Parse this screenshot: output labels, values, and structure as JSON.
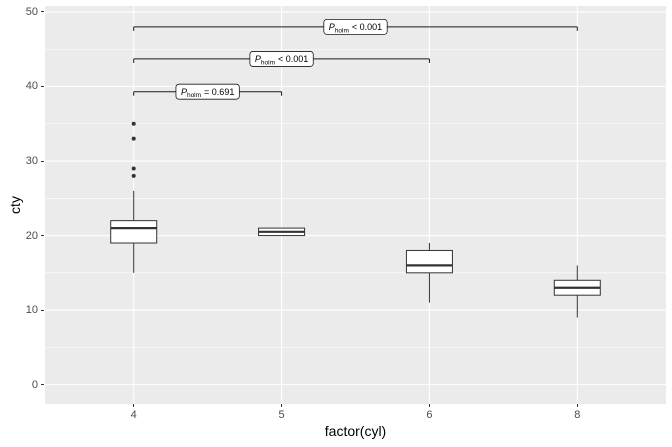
{
  "chart_data": {
    "type": "boxplot",
    "title": "",
    "xlabel": "factor(cyl)",
    "ylabel": "cty",
    "categories": [
      "4",
      "5",
      "6",
      "8"
    ],
    "y_ticks": [
      0,
      10,
      20,
      30,
      40,
      50
    ],
    "y_minor": [
      5,
      15,
      25,
      35,
      45
    ],
    "ylim": [
      -2.6,
      50.8
    ],
    "grid": "major-and-minor",
    "legend": "none",
    "boxes": [
      {
        "category": "4",
        "min": 15,
        "q1": 19,
        "median": 21,
        "q3": 22,
        "max": 26,
        "outliers": [
          28,
          29,
          33,
          35
        ]
      },
      {
        "category": "5",
        "min": 20,
        "q1": 20,
        "median": 20.5,
        "q3": 21,
        "max": 21,
        "outliers": []
      },
      {
        "category": "6",
        "min": 11,
        "q1": 15,
        "median": 16,
        "q3": 18,
        "max": 19,
        "outliers": []
      },
      {
        "category": "8",
        "min": 9,
        "q1": 12,
        "median": 13,
        "q3": 14,
        "max": 16,
        "outliers": []
      }
    ],
    "comparisons": [
      {
        "groups": [
          "4",
          "5"
        ],
        "y_position": 39.3,
        "label": {
          "symbol": "P",
          "subscript": "holm",
          "comparison": "= 0.691"
        }
      },
      {
        "groups": [
          "4",
          "6"
        ],
        "y_position": 43.7,
        "label": {
          "symbol": "P",
          "subscript": "holm",
          "comparison": "< 0.001"
        }
      },
      {
        "groups": [
          "4",
          "8"
        ],
        "y_position": 48,
        "label": {
          "symbol": "P",
          "subscript": "holm",
          "comparison": "< 0.001"
        }
      }
    ],
    "colors": {
      "panel_bg": "#EBEBEB",
      "grid_major": "#FFFFFF",
      "grid_minor": "#FFFFFF",
      "box_fill": "#FFFFFF",
      "box_stroke": "#333333",
      "bracket": "#1A1A1A",
      "label_fill": "#FFFFFF",
      "tick_text": "#4D4D4D",
      "axis_title": "#000000"
    }
  }
}
